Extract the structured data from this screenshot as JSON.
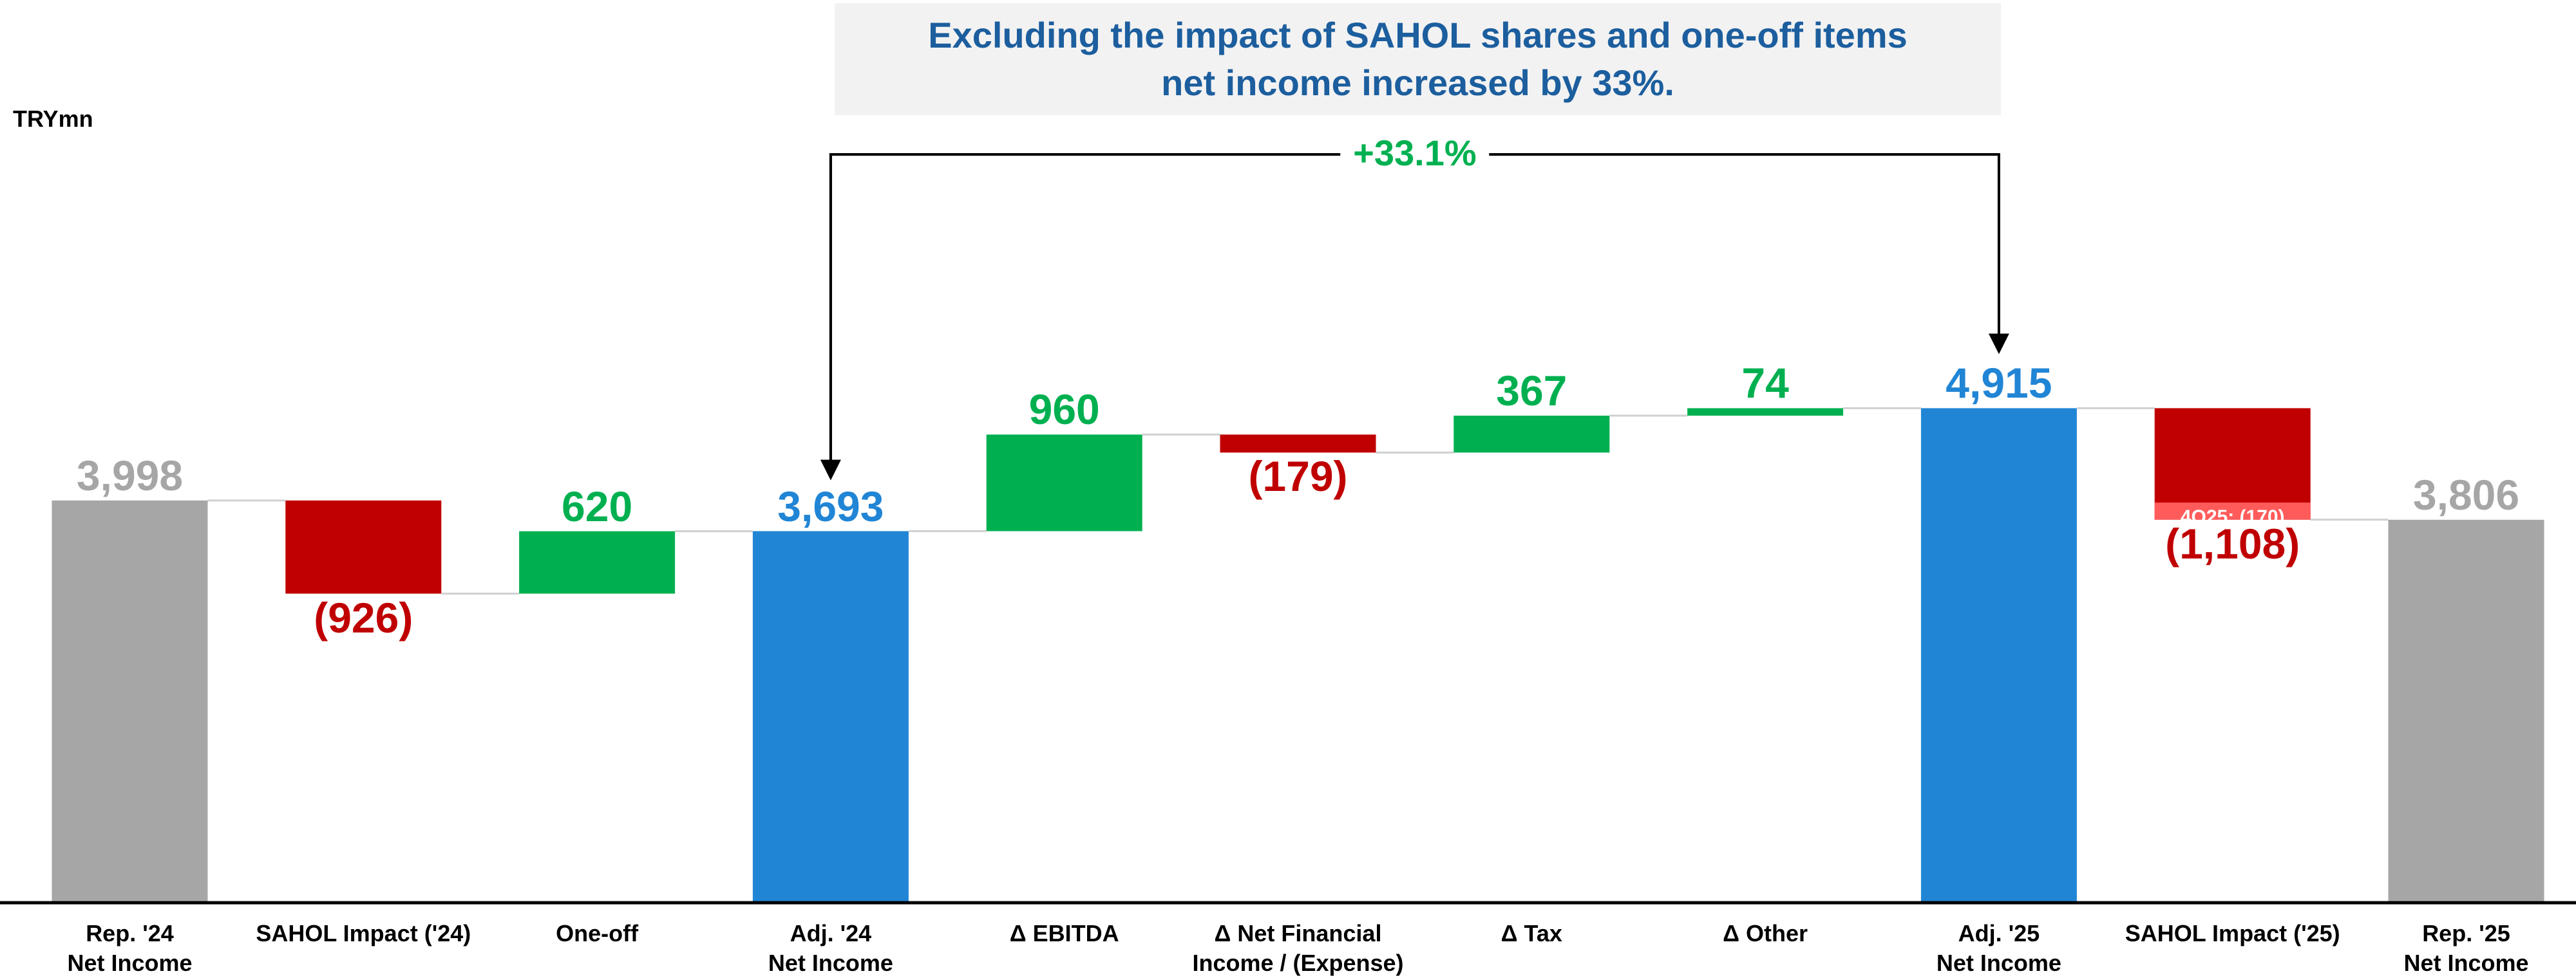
{
  "chart_data": {
    "type": "waterfall",
    "title": "Excluding the impact of SAHOL shares and one-off items\nnet income increased by 33%.",
    "unit_label": "TRYmn",
    "categories": [
      "Rep. '24\nNet Income",
      "SAHOL Impact ('24)",
      "One-off",
      "Adj. '24\nNet Income",
      "Δ EBITDA",
      "Δ Net Financial\nIncome / (Expense)",
      "Δ Tax",
      "Δ Other",
      "Adj. '25\nNet Income",
      "SAHOL Impact ('25)",
      "Rep. '25\nNet Income"
    ],
    "values": [
      3998,
      -926,
      620,
      3693,
      960,
      -179,
      367,
      74,
      4915,
      -1108,
      3806
    ],
    "value_labels": [
      "3,998",
      "(926)",
      "620",
      "3,693",
      "960",
      "(179)",
      "367",
      "74",
      "4,915",
      "(1,108)",
      "3,806"
    ],
    "totals": [
      true,
      false,
      false,
      true,
      false,
      false,
      false,
      false,
      true,
      false,
      true
    ],
    "colors": [
      "#a6a6a6",
      "#c00000",
      "#00b050",
      "#2185d5",
      "#00b050",
      "#c00000",
      "#00b050",
      "#00b050",
      "#2185d5",
      "#c00000",
      "#a6a6a6"
    ],
    "sub_segment": {
      "index": 9,
      "value": -170,
      "label": "4Q25: (170)",
      "color": "#ff5b5b"
    },
    "annotation": {
      "from": 3,
      "to": 8,
      "label": "+33.1%"
    },
    "ylim": [
      0,
      8000
    ]
  }
}
